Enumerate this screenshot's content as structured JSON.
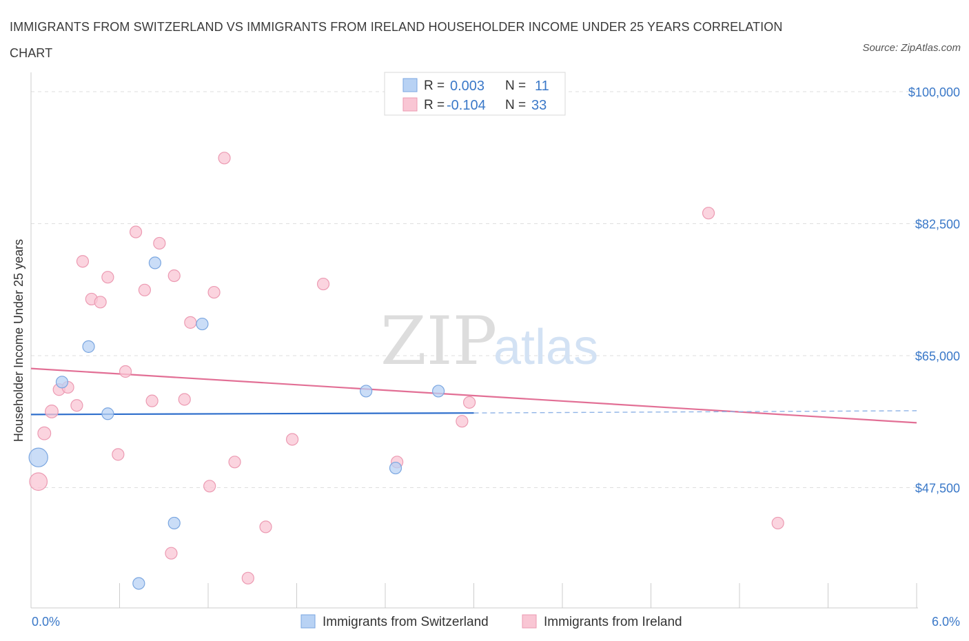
{
  "title": "IMMIGRANTS FROM SWITZERLAND VS IMMIGRANTS FROM IRELAND HOUSEHOLDER INCOME UNDER 25 YEARS CORRELATION CHART",
  "source": "Source: ZipAtlas.com",
  "watermark": {
    "zip": "ZIP",
    "atlas": "atlas"
  },
  "colors": {
    "switzerland_fill": "#b8d2f4",
    "switzerland_stroke": "#7aa6e0",
    "switzerland_line": "#2f6fcc",
    "ireland_fill": "#f9c6d4",
    "ireland_stroke": "#ec9ab2",
    "ireland_line": "#e26f95",
    "axis_text": "#3a78c8"
  },
  "stats": {
    "r_label": "R =",
    "n_label": "N =",
    "rows": [
      {
        "series": "switzerland",
        "r": "0.003",
        "n": "11"
      },
      {
        "series": "ireland",
        "r": "-0.104",
        "n": "33"
      }
    ]
  },
  "chart_data": {
    "type": "scatter",
    "title": "IMMIGRANTS FROM SWITZERLAND VS IMMIGRANTS FROM IRELAND HOUSEHOLDER INCOME UNDER 25 YEARS CORRELATION CHART",
    "xlabel": "",
    "ylabel": "Householder Income Under 25 years",
    "xlim": [
      0,
      6.0
    ],
    "ylim": [
      35000,
      102000
    ],
    "x_tick_labels": [
      "0.0%",
      "6.0%"
    ],
    "y_ticks": [
      100000,
      82500,
      65000,
      47500
    ],
    "y_tick_labels": [
      "$100,000",
      "$82,500",
      "$65,000",
      "$47,500"
    ],
    "grid": true,
    "legend_position": "bottom",
    "series": [
      {
        "name": "Immigrants from Switzerland",
        "key": "switzerland",
        "points": [
          {
            "x": 0.05,
            "y": 51500,
            "s": 1.6
          },
          {
            "x": 0.21,
            "y": 61500,
            "s": 1
          },
          {
            "x": 0.39,
            "y": 66200,
            "s": 1
          },
          {
            "x": 0.52,
            "y": 57300,
            "s": 1
          },
          {
            "x": 0.73,
            "y": 34800,
            "s": 1
          },
          {
            "x": 0.84,
            "y": 77300,
            "s": 1
          },
          {
            "x": 0.97,
            "y": 42800,
            "s": 1
          },
          {
            "x": 1.16,
            "y": 69200,
            "s": 1
          },
          {
            "x": 2.27,
            "y": 60300,
            "s": 1
          },
          {
            "x": 2.47,
            "y": 50100,
            "s": 1
          },
          {
            "x": 2.76,
            "y": 60300,
            "s": 1
          }
        ],
        "trend": {
          "x0": 0.0,
          "y0": 57200,
          "x1": 3.0,
          "y1": 57400,
          "dashed_to_x": 6.0,
          "dashed_to_y": 57700
        }
      },
      {
        "name": "Immigrants from Ireland",
        "key": "ireland",
        "points": [
          {
            "x": 0.05,
            "y": 48300,
            "s": 1.5
          },
          {
            "x": 0.09,
            "y": 54700,
            "s": 1.1
          },
          {
            "x": 0.14,
            "y": 57600,
            "s": 1.1
          },
          {
            "x": 0.19,
            "y": 60500,
            "s": 1
          },
          {
            "x": 0.25,
            "y": 60800,
            "s": 1
          },
          {
            "x": 0.31,
            "y": 58400,
            "s": 1
          },
          {
            "x": 0.35,
            "y": 77500,
            "s": 1
          },
          {
            "x": 0.41,
            "y": 72500,
            "s": 1
          },
          {
            "x": 0.47,
            "y": 72100,
            "s": 1
          },
          {
            "x": 0.52,
            "y": 75400,
            "s": 1
          },
          {
            "x": 0.59,
            "y": 51900,
            "s": 1
          },
          {
            "x": 0.64,
            "y": 62900,
            "s": 1
          },
          {
            "x": 0.71,
            "y": 81400,
            "s": 1
          },
          {
            "x": 0.77,
            "y": 73700,
            "s": 1
          },
          {
            "x": 0.82,
            "y": 59000,
            "s": 1
          },
          {
            "x": 0.87,
            "y": 79900,
            "s": 1
          },
          {
            "x": 0.95,
            "y": 38800,
            "s": 1
          },
          {
            "x": 0.97,
            "y": 75600,
            "s": 1
          },
          {
            "x": 1.04,
            "y": 59200,
            "s": 1
          },
          {
            "x": 1.08,
            "y": 69400,
            "s": 1
          },
          {
            "x": 1.21,
            "y": 47700,
            "s": 1
          },
          {
            "x": 1.24,
            "y": 73400,
            "s": 1
          },
          {
            "x": 1.31,
            "y": 91200,
            "s": 1
          },
          {
            "x": 1.38,
            "y": 50900,
            "s": 1
          },
          {
            "x": 1.47,
            "y": 35500,
            "s": 1
          },
          {
            "x": 1.59,
            "y": 42300,
            "s": 1
          },
          {
            "x": 1.77,
            "y": 53900,
            "s": 1
          },
          {
            "x": 1.98,
            "y": 74500,
            "s": 1
          },
          {
            "x": 2.48,
            "y": 50900,
            "s": 1
          },
          {
            "x": 2.92,
            "y": 56300,
            "s": 1
          },
          {
            "x": 2.97,
            "y": 58800,
            "s": 1
          },
          {
            "x": 4.59,
            "y": 83900,
            "s": 1
          },
          {
            "x": 5.06,
            "y": 42800,
            "s": 1
          }
        ],
        "trend": {
          "x0": 0.0,
          "y0": 63300,
          "x1": 6.0,
          "y1": 56100
        }
      }
    ]
  }
}
